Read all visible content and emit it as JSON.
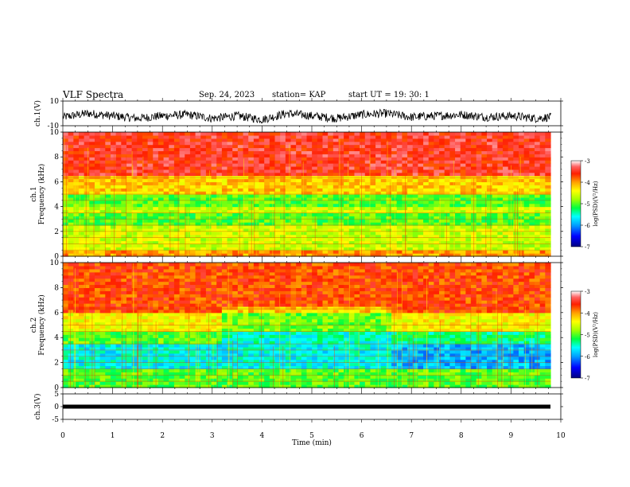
{
  "header": {
    "title": "VLF Spectra",
    "date": "Sep. 24, 2023",
    "station": "station= KAP",
    "start_ut": "start  UT  =   19: 30: 1"
  },
  "colors": {
    "spectrogram_scale": [
      "#000080",
      "#0000ff",
      "#00a0ff",
      "#00ffff",
      "#00ff60",
      "#a0ff00",
      "#ffff00",
      "#ffa000",
      "#ff3000",
      "#ff0000",
      "#ff8080",
      "#ffffff"
    ],
    "trace": "#000000",
    "background": "#ffffff"
  },
  "chart_data": [
    {
      "type": "line",
      "panel": "ch1-waveform",
      "ylabel": "ch.1(V)",
      "ylim": [
        -10,
        10
      ],
      "yticks": [
        "10",
        "-10"
      ],
      "xlim": [
        0,
        10
      ],
      "description_series": "noisy waveform oscillating roughly between -8 and 6 V",
      "series": [
        {
          "x": [
            0,
            0.5,
            1,
            1.5,
            2,
            2.5,
            3,
            3.5,
            4,
            4.5,
            5,
            5.5,
            6,
            6.5,
            7,
            7.5,
            8,
            8.5,
            9,
            9.5,
            9.8
          ],
          "values": [
            -3,
            0,
            -2,
            -4,
            -2,
            -1,
            -4,
            -2,
            -5,
            0,
            -2,
            -4,
            -1,
            0,
            -3,
            -2,
            -1,
            -3,
            -2,
            -4,
            -3
          ]
        }
      ]
    },
    {
      "type": "heatmap",
      "panel": "ch1-spectrogram",
      "ylabel": "ch.1\nFrequency (kHz)",
      "ylim": [
        0,
        10
      ],
      "yticks": [
        "0",
        "2",
        "4",
        "6",
        "8",
        "10"
      ],
      "xlim": [
        0,
        10
      ],
      "colorbar": {
        "label": "log(PSD)(V²/Hz)",
        "range": [
          -7,
          -3
        ],
        "ticks": [
          "-3",
          "-4",
          "-5",
          "-6",
          "-7"
        ]
      },
      "bands_kHz": [
        {
          "from": 0,
          "to": 0.5,
          "value": -4.0
        },
        {
          "from": 0.5,
          "to": 2.5,
          "value": -4.6
        },
        {
          "from": 2.5,
          "to": 3.6,
          "value": -5.0
        },
        {
          "from": 3.6,
          "to": 4.0,
          "value": -4.6
        },
        {
          "from": 4.0,
          "to": 5.0,
          "value": -5.0
        },
        {
          "from": 5.0,
          "to": 6.5,
          "value": -4.2
        },
        {
          "from": 6.5,
          "to": 10.0,
          "value": -3.5
        }
      ]
    },
    {
      "type": "heatmap",
      "panel": "ch2-spectrogram",
      "ylabel": "ch.2\nFrequency (kHz)",
      "ylim": [
        0,
        10
      ],
      "yticks": [
        "0",
        "2",
        "4",
        "6",
        "8",
        "10"
      ],
      "xlim": [
        0,
        10
      ],
      "colorbar": {
        "label": "log(PSD)(V²/Hz)",
        "range": [
          -7,
          -3
        ],
        "ticks": [
          "-3",
          "-4",
          "-5",
          "-6",
          "-7"
        ]
      },
      "bands_kHz": [
        {
          "from": 0,
          "to": 0.4,
          "value": -5.0
        },
        {
          "from": 0.4,
          "to": 1.5,
          "value": -5.0
        },
        {
          "from": 1.5,
          "to": 3.5,
          "value": -5.6
        },
        {
          "from": 3.5,
          "to": 4.5,
          "value": -5.0
        },
        {
          "from": 4.5,
          "to": 6.0,
          "value": -4.4
        },
        {
          "from": 6.0,
          "to": 10.0,
          "value": -3.7
        }
      ]
    },
    {
      "type": "line",
      "panel": "ch3-waveform",
      "ylabel": "ch.3(V)",
      "ylim": [
        -5,
        5
      ],
      "yticks": [
        "5",
        "0",
        "-5"
      ],
      "xlim": [
        0,
        10
      ],
      "xlabel": "Time (min)",
      "xticks": [
        "0",
        "1",
        "2",
        "3",
        "4",
        "5",
        "6",
        "7",
        "8",
        "9",
        "10"
      ],
      "series": [
        {
          "x": [
            0,
            9.8
          ],
          "values": [
            0,
            0
          ]
        }
      ]
    }
  ]
}
